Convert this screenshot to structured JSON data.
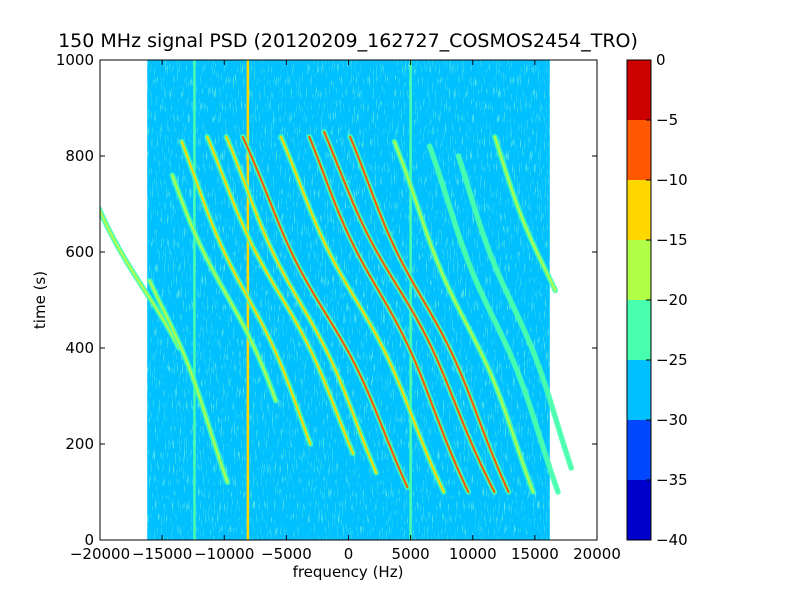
{
  "chart_data": {
    "type": "heatmap",
    "title": "150 MHz signal PSD (20120209_162727_COSMOS2454_TRO)",
    "xlabel": "frequency (Hz)",
    "ylabel": "time (s)",
    "xlim": [
      -20000,
      20000
    ],
    "ylim": [
      0,
      1000
    ],
    "x_ticks": [
      -20000,
      -15000,
      -10000,
      -5000,
      0,
      5000,
      10000,
      15000,
      20000
    ],
    "x_tick_labels": [
      "−20000",
      "−15000",
      "−10000",
      "−5000",
      "0",
      "5000",
      "10000",
      "15000",
      "20000"
    ],
    "y_ticks": [
      0,
      200,
      400,
      600,
      800,
      1000
    ],
    "y_tick_labels": [
      "0",
      "200",
      "400",
      "600",
      "800",
      "1000"
    ],
    "data_extent_x": [
      -16200,
      16200
    ],
    "background_level": -27.5,
    "colorbar": {
      "range": [
        -40,
        0
      ],
      "ticks": [
        0,
        -5,
        -10,
        -15,
        -20,
        -25,
        -30,
        -35,
        -40
      ],
      "tick_labels": [
        "0",
        "−5",
        "−10",
        "−15",
        "−20",
        "−25",
        "−30",
        "−35",
        "−40"
      ],
      "levels": [
        {
          "from": -40,
          "to": -35,
          "color": "#0000cd"
        },
        {
          "from": -35,
          "to": -30,
          "color": "#0047ff"
        },
        {
          "from": -30,
          "to": -25,
          "color": "#00c0ff"
        },
        {
          "from": -25,
          "to": -20,
          "color": "#48ffae"
        },
        {
          "from": -20,
          "to": -15,
          "color": "#b1ff46"
        },
        {
          "from": -15,
          "to": -10,
          "color": "#ffd700"
        },
        {
          "from": -10,
          "to": -5,
          "color": "#ff5800"
        },
        {
          "from": -5,
          "to": 0,
          "color": "#cd0000"
        }
      ]
    },
    "vertical_lines": [
      {
        "freq": -12400,
        "t_start": 0,
        "t_end": 1000,
        "level": -22
      },
      {
        "freq": -8100,
        "t_start": 0,
        "t_end": 1000,
        "level": -12
      },
      {
        "freq": 5000,
        "t_start": 0,
        "t_end": 1000,
        "level": -22
      }
    ],
    "doppler_tracks": [
      {
        "f_center": -16400,
        "t_center": 520,
        "amplitude": 4000,
        "t_start": 400,
        "t_end": 720,
        "level": -20
      },
      {
        "f_center": -14900,
        "t_center": 480,
        "amplitude": 3000,
        "t_start": 120,
        "t_end": 540,
        "level": -20
      },
      {
        "f_center": -9800,
        "t_center": 510,
        "amplitude": 3500,
        "t_start": 290,
        "t_end": 760,
        "level": -20
      },
      {
        "f_center": -8100,
        "t_center": 505,
        "amplitude": 3400,
        "t_start": 200,
        "t_end": 830,
        "level": -13
      },
      {
        "f_center": -5500,
        "t_center": 510,
        "amplitude": 3700,
        "t_start": 180,
        "t_end": 840,
        "level": -14
      },
      {
        "f_center": -3800,
        "t_center": 490,
        "amplitude": 3600,
        "t_start": 140,
        "t_end": 840,
        "level": -13
      },
      {
        "f_center": -1800,
        "t_center": 470,
        "amplitude": 3800,
        "t_start": 110,
        "t_end": 840,
        "level": -9
      },
      {
        "f_center": 600,
        "t_center": 500,
        "amplitude": 3700,
        "t_start": 100,
        "t_end": 840,
        "level": -12
      },
      {
        "f_center": 2400,
        "t_center": 520,
        "amplitude": 3600,
        "t_start": 100,
        "t_end": 840,
        "level": -10
      },
      {
        "f_center": 3900,
        "t_center": 530,
        "amplitude": 3800,
        "t_start": 100,
        "t_end": 850,
        "level": -8
      },
      {
        "f_center": 6000,
        "t_center": 500,
        "amplitude": 3600,
        "t_start": 100,
        "t_end": 840,
        "level": -9
      },
      {
        "f_center": 9500,
        "t_center": 450,
        "amplitude": 3200,
        "t_start": 100,
        "t_end": 830,
        "level": -18
      },
      {
        "f_center": 11700,
        "t_center": 460,
        "amplitude": 3000,
        "t_start": 100,
        "t_end": 820,
        "level": -22
      },
      {
        "f_center": 13200,
        "t_center": 490,
        "amplitude": 2900,
        "t_start": 150,
        "t_end": 800,
        "level": -22
      },
      {
        "f_center": 15900,
        "t_center": 560,
        "amplitude": 3000,
        "t_start": 520,
        "t_end": 840,
        "level": -20
      }
    ]
  }
}
